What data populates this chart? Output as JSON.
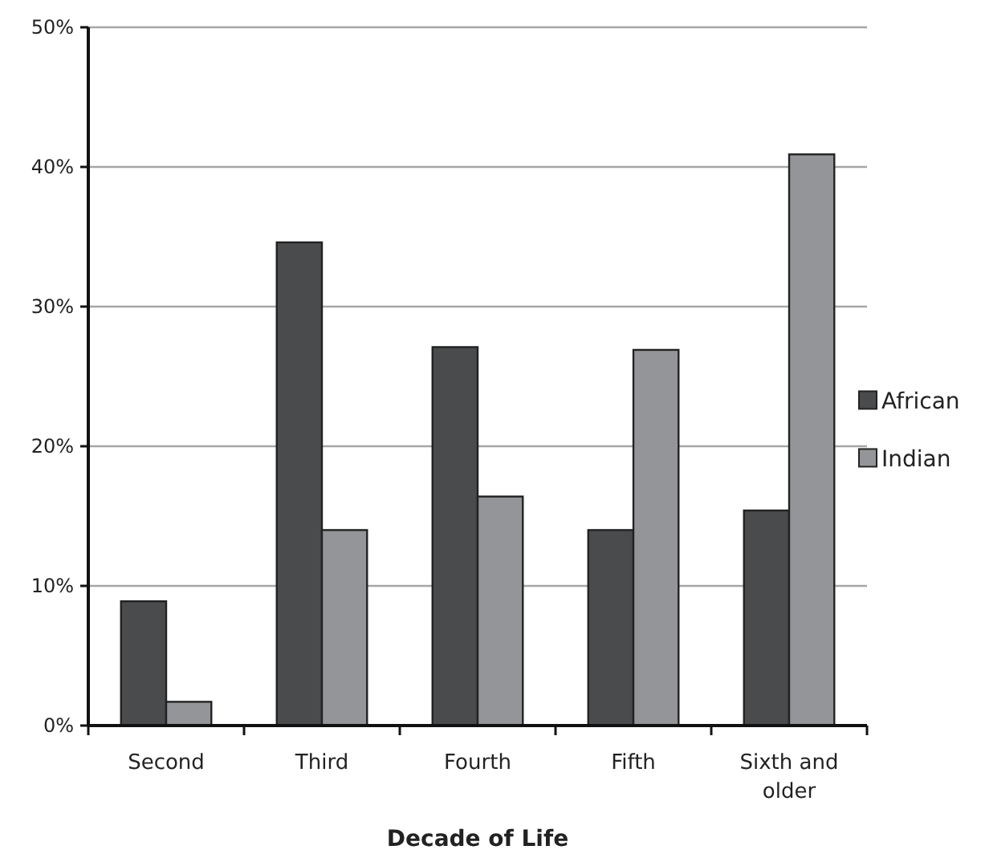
{
  "chart_data": {
    "type": "bar",
    "xlabel": "Decade of Life",
    "categories": [
      "Second",
      "Third",
      "Fourth",
      "Fifth",
      "Sixth and older"
    ],
    "series": [
      {
        "name": "African",
        "color": "#4a4b4d",
        "values": [
          8.9,
          34.6,
          27.1,
          14.0,
          15.4
        ]
      },
      {
        "name": "Indian",
        "color": "#939598",
        "values": [
          1.7,
          14.0,
          16.4,
          26.9,
          40.9
        ]
      }
    ],
    "ylim": [
      0,
      50
    ],
    "yticks": [
      {
        "value": 0,
        "label": "0%"
      },
      {
        "value": 10,
        "label": "10%"
      },
      {
        "value": 20,
        "label": "20%"
      },
      {
        "value": 30,
        "label": "30%"
      },
      {
        "value": 40,
        "label": "40%"
      },
      {
        "value": 50,
        "label": "50%"
      }
    ],
    "grid": "y",
    "legend": "right"
  }
}
